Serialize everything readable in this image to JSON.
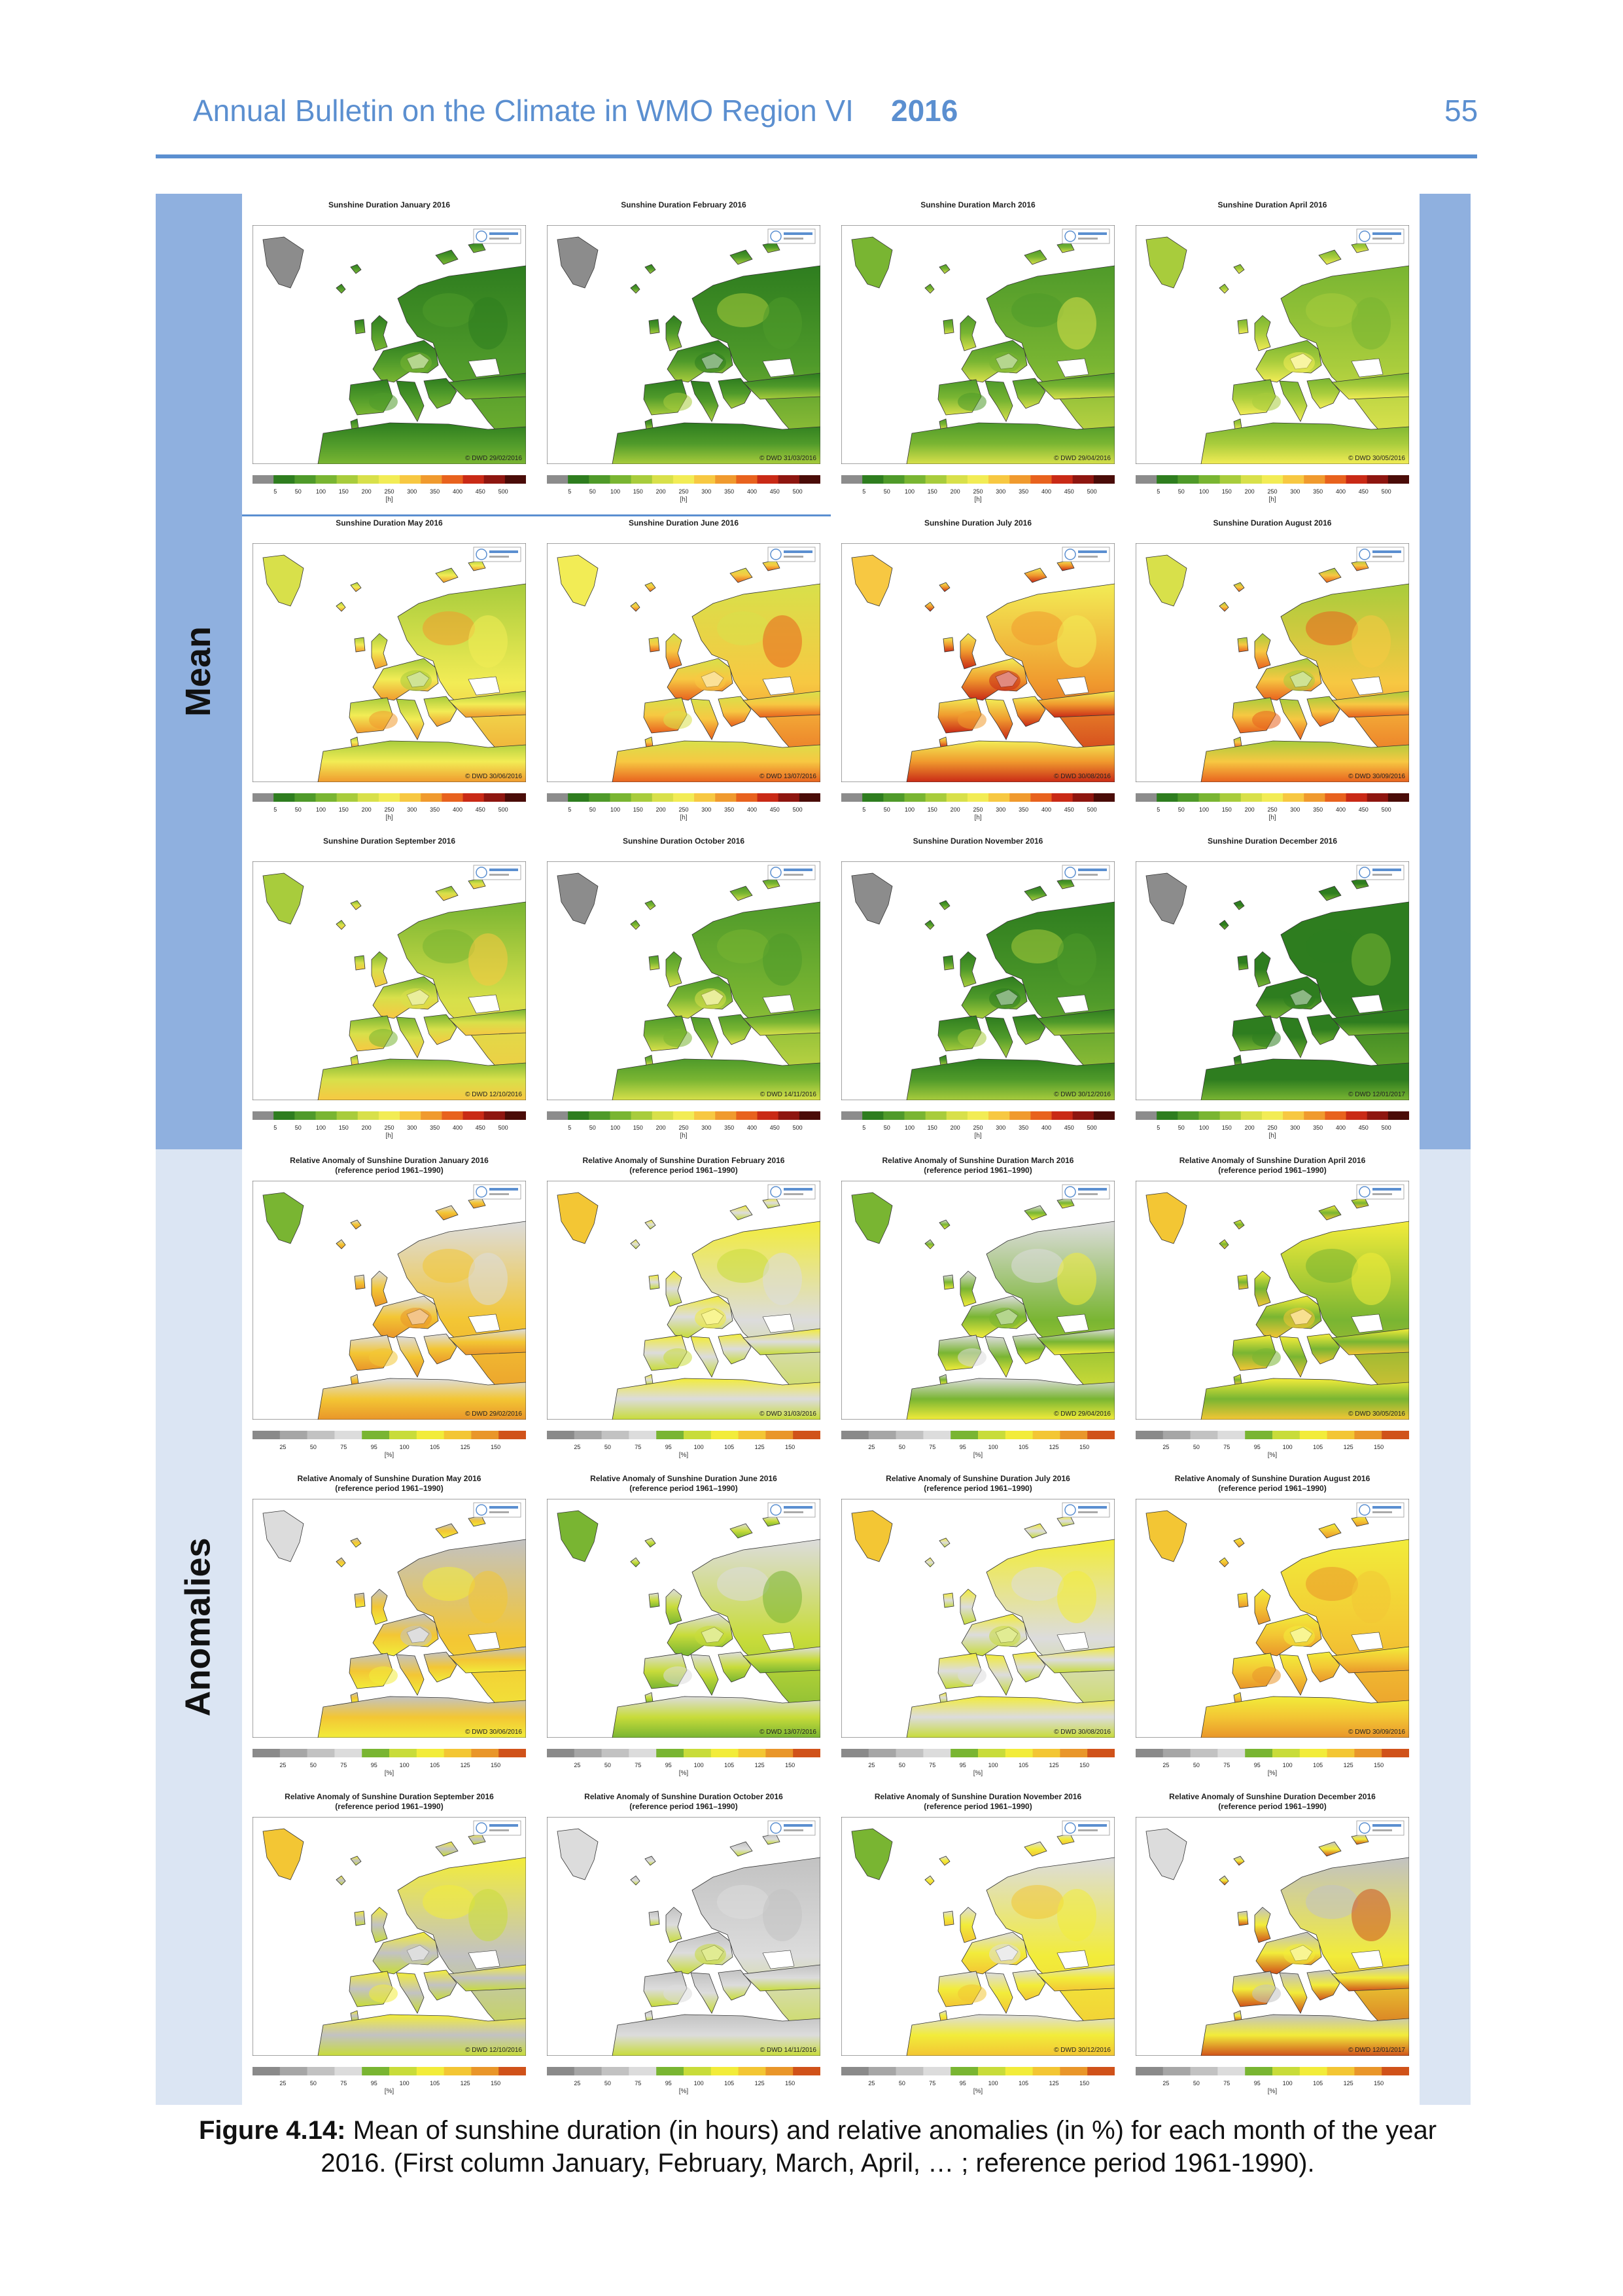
{
  "header": {
    "title": "Annual Bulletin on the Climate in WMO Region VI",
    "year": "2016",
    "page_number": "55"
  },
  "sections": {
    "mean_label": "Mean",
    "anomalies_label": "Anomalies"
  },
  "colors": {
    "accent": "#5b8fd0",
    "mean_band": "#8fb0df",
    "anom_band": "#dbe5f3",
    "mean_scale": [
      "#8c8c8c",
      "#2e7d1f",
      "#4f9a2a",
      "#79b532",
      "#a8cc3c",
      "#d8e04a",
      "#f2ec55",
      "#f7c842",
      "#f09a2e",
      "#e8621e",
      "#c92a16",
      "#8e1610",
      "#4a0c08"
    ],
    "anom_scale": [
      "#8a8a8a",
      "#a6a6a6",
      "#c2c2c2",
      "#dcdcdc",
      "#79b532",
      "#c8dc3a",
      "#f2ec3a",
      "#f3c634",
      "#e9962a",
      "#d0521a"
    ]
  },
  "mean_maps": [
    {
      "title": "Sunshine Duration January 2016",
      "stamp": "© DWD 29/02/2016",
      "month": 1
    },
    {
      "title": "Sunshine Duration February 2016",
      "stamp": "© DWD 31/03/2016",
      "month": 2
    },
    {
      "title": "Sunshine Duration March 2016",
      "stamp": "© DWD 29/04/2016",
      "month": 3
    },
    {
      "title": "Sunshine Duration April 2016",
      "stamp": "© DWD 30/05/2016",
      "month": 4
    },
    {
      "title": "Sunshine Duration May 2016",
      "stamp": "© DWD 30/06/2016",
      "month": 5
    },
    {
      "title": "Sunshine Duration June 2016",
      "stamp": "© DWD 13/07/2016",
      "month": 6
    },
    {
      "title": "Sunshine Duration July 2016",
      "stamp": "© DWD 30/08/2016",
      "month": 7
    },
    {
      "title": "Sunshine Duration August 2016",
      "stamp": "© DWD 30/09/2016",
      "month": 8
    },
    {
      "title": "Sunshine Duration September 2016",
      "stamp": "© DWD 12/10/2016",
      "month": 9
    },
    {
      "title": "Sunshine Duration October 2016",
      "stamp": "© DWD 14/11/2016",
      "month": 10
    },
    {
      "title": "Sunshine Duration November 2016",
      "stamp": "© DWD 30/12/2016",
      "month": 11
    },
    {
      "title": "Sunshine Duration December 2016",
      "stamp": "© DWD 12/01/2017",
      "month": 12
    }
  ],
  "anom_maps": [
    {
      "title": "Relative Anomaly of Sunshine Duration January 2016\n(reference period 1961–1990)",
      "stamp": "© DWD 29/02/2016",
      "month": 1
    },
    {
      "title": "Relative Anomaly of Sunshine Duration February 2016\n(reference period 1961–1990)",
      "stamp": "© DWD 31/03/2016",
      "month": 2
    },
    {
      "title": "Relative Anomaly of Sunshine Duration March 2016\n(reference period 1961–1990)",
      "stamp": "© DWD 29/04/2016",
      "month": 3
    },
    {
      "title": "Relative Anomaly of Sunshine Duration April 2016\n(reference period 1961–1990)",
      "stamp": "© DWD 30/05/2016",
      "month": 4
    },
    {
      "title": "Relative Anomaly of Sunshine Duration May 2016\n(reference period 1961–1990)",
      "stamp": "© DWD 30/06/2016",
      "month": 5
    },
    {
      "title": "Relative Anomaly of Sunshine Duration June 2016\n(reference period 1961–1990)",
      "stamp": "© DWD 13/07/2016",
      "month": 6
    },
    {
      "title": "Relative Anomaly of Sunshine Duration July 2016\n(reference period 1961–1990)",
      "stamp": "© DWD 30/08/2016",
      "month": 7
    },
    {
      "title": "Relative Anomaly of Sunshine Duration August 2016\n(reference period 1961–1990)",
      "stamp": "© DWD 30/09/2016",
      "month": 8
    },
    {
      "title": "Relative Anomaly of Sunshine Duration September 2016\n(reference period 1961–1990)",
      "stamp": "© DWD 12/10/2016",
      "month": 9
    },
    {
      "title": "Relative Anomaly of Sunshine Duration October 2016\n(reference period 1961–1990)",
      "stamp": "© DWD 14/11/2016",
      "month": 10
    },
    {
      "title": "Relative Anomaly of Sunshine Duration November 2016\n(reference period 1961–1990)",
      "stamp": "© DWD 30/12/2016",
      "month": 11
    },
    {
      "title": "Relative Anomaly of Sunshine Duration December 2016\n(reference period 1961–1990)",
      "stamp": "© DWD 12/01/2017",
      "month": 12
    }
  ],
  "mean_ticks": [
    "5",
    "50",
    "100",
    "150",
    "200",
    "250",
    "300",
    "350",
    "400",
    "450",
    "500"
  ],
  "mean_unit": "[h]",
  "anom_ticks": [
    "25",
    "50",
    "75",
    "95",
    "100",
    "105",
    "125",
    "150"
  ],
  "anom_unit": "[%]",
  "caption": {
    "label": "Figure 4.14:",
    "text": " Mean of sunshine duration (in hours) and relative anomalies (in %) for each month of the year 2016. (First column January, February, March, April, … ; reference period 1961-1990)."
  }
}
